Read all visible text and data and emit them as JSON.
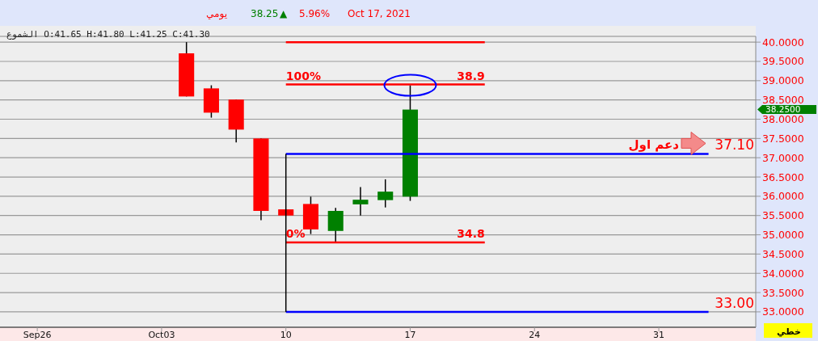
{
  "chart_data": {
    "type": "candlestick",
    "categories": [
      "Sep26",
      null,
      null,
      null,
      null,
      "Oct03",
      null,
      null,
      null,
      null,
      "10",
      null,
      null,
      null,
      null,
      "17",
      null,
      null,
      null,
      null,
      "24",
      null,
      null,
      null,
      null,
      "31",
      null,
      null
    ],
    "ohlc": [
      null,
      null,
      null,
      null,
      null,
      null,
      [
        39.71,
        40.0,
        38.59,
        38.59
      ],
      [
        38.8,
        38.88,
        38.04,
        38.17
      ],
      [
        38.51,
        38.51,
        37.4,
        37.73
      ],
      [
        37.5,
        37.5,
        35.38,
        35.62
      ],
      [
        35.66,
        35.66,
        35.5,
        35.5
      ],
      [
        35.8,
        35.99,
        35.02,
        35.14
      ],
      [
        35.1,
        35.7,
        34.82,
        35.62
      ],
      [
        35.79,
        36.24,
        35.5,
        35.91
      ],
      [
        35.9,
        36.44,
        35.71,
        36.12
      ],
      [
        35.99,
        38.88,
        35.88,
        38.25
      ],
      null,
      null,
      null,
      null,
      null,
      null,
      null,
      null,
      null,
      null,
      null,
      null
    ],
    "colors": [
      null,
      null,
      null,
      null,
      null,
      null,
      "#ff0000",
      "#ff0000",
      "#ff0000",
      "#ff0000",
      "#ff0000",
      "#ff0000",
      "#008000",
      "#008000",
      "#008000",
      "#008000",
      null,
      null,
      null,
      null,
      null,
      null,
      null,
      null,
      null,
      null,
      null,
      null
    ],
    "series": [
      {
        "type": "line",
        "color": "#ff0000",
        "values": [
          null,
          null,
          null,
          null,
          null,
          null,
          null,
          null,
          null,
          null,
          40.0,
          40.0,
          40.0,
          40.0,
          40.0,
          40.0,
          40.0,
          40.0,
          40.0,
          null,
          null,
          null,
          null,
          null,
          null,
          null,
          null,
          null
        ]
      },
      {
        "type": "line",
        "color": "#ff0000",
        "values": [
          null,
          null,
          null,
          null,
          null,
          null,
          null,
          null,
          null,
          null,
          38.9,
          38.9,
          38.9,
          38.9,
          38.9,
          38.9,
          38.9,
          38.9,
          38.9,
          null,
          null,
          null,
          null,
          null,
          null,
          null,
          null,
          null
        ]
      },
      {
        "type": "line",
        "color": "#ff0000",
        "values": [
          null,
          null,
          null,
          null,
          null,
          null,
          null,
          null,
          null,
          null,
          34.8,
          34.8,
          34.8,
          34.8,
          34.8,
          34.8,
          34.8,
          34.8,
          34.8,
          null,
          null,
          null,
          null,
          null,
          null,
          null,
          null,
          null
        ]
      },
      {
        "type": "line",
        "color": "#0000ff",
        "values": [
          null,
          null,
          null,
          null,
          null,
          null,
          null,
          null,
          null,
          null,
          37.1,
          37.1,
          37.1,
          37.1,
          37.1,
          37.1,
          37.1,
          37.1,
          37.1,
          37.1,
          37.1,
          37.1,
          37.1,
          37.1,
          37.1,
          37.1,
          37.1,
          37.1
        ]
      },
      {
        "type": "line",
        "color": "#0000ff",
        "values": [
          null,
          null,
          null,
          null,
          null,
          null,
          null,
          null,
          null,
          null,
          33.0,
          33.0,
          33.0,
          33.0,
          33.0,
          33.0,
          33.0,
          33.0,
          33.0,
          33.0,
          33.0,
          33.0,
          33.0,
          33.0,
          33.0,
          33.0,
          33.0,
          33.0
        ]
      },
      {
        "type": "line",
        "color": "#000000",
        "x": [
          "10",
          "10"
        ],
        "values": [
          37.1,
          33.0
        ]
      }
    ],
    "ylim": [
      32.6,
      40.15
    ],
    "yticks": [
      {
        "value": 33,
        "label": "33.0000"
      },
      {
        "value": 33.5,
        "label": "33.5000"
      },
      {
        "value": 34,
        "label": "34.0000"
      },
      {
        "value": 34.5,
        "label": "34.5000"
      },
      {
        "value": 35,
        "label": "35.0000"
      },
      {
        "value": 35.5,
        "label": "35.5000"
      },
      {
        "value": 36,
        "label": "36.0000"
      },
      {
        "value": 36.5,
        "label": "36.5000"
      },
      {
        "value": 37,
        "label": "37.0000"
      },
      {
        "value": 37.5,
        "label": "37.5000"
      },
      {
        "value": 38,
        "label": "38.0000"
      },
      {
        "value": 38.5,
        "label": "38.5000"
      },
      {
        "value": 39,
        "label": "39.0000"
      },
      {
        "value": 39.5,
        "label": "39.5000"
      },
      {
        "value": 40,
        "label": "40.0000"
      }
    ],
    "grid": "y",
    "annotations": [
      "يومي",
      "38.25",
      "▲",
      "5.96%",
      "Oct 17, 2021",
      "الشموع O:41.65 H:41.80 L:41.25 C:41.30",
      {
        "text": "100%",
        "x": "10",
        "y": 38.9
      },
      {
        "text": "38.9",
        "y": 38.9
      },
      {
        "text": "0%",
        "x": "10",
        "y": 34.8
      },
      {
        "text": "34.8",
        "y": 34.8
      },
      {
        "text": "دعم اول",
        "y": 37.1
      },
      "37.10",
      "33.00",
      "38.2500",
      "خطي"
    ]
  }
}
